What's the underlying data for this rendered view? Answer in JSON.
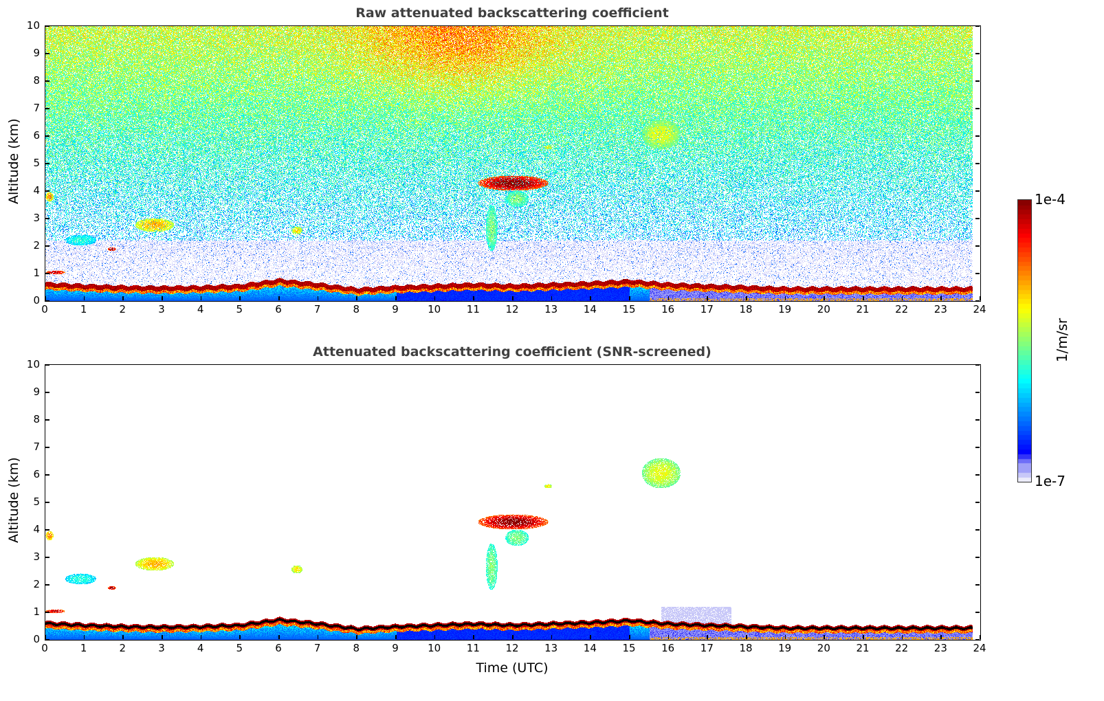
{
  "chart_data": [
    {
      "type": "heatmap",
      "title": "Raw attenuated backscattering coefficient",
      "xlabel": "",
      "ylabel": "Altitude (km)",
      "xlim": [
        0,
        24
      ],
      "ylim": [
        0,
        10
      ],
      "xticks": [
        0,
        1,
        2,
        3,
        4,
        5,
        6,
        7,
        8,
        9,
        10,
        11,
        12,
        13,
        14,
        15,
        16,
        17,
        18,
        19,
        20,
        21,
        22,
        23,
        24
      ],
      "yticks": [
        0,
        1,
        2,
        3,
        4,
        5,
        6,
        7,
        8,
        9,
        10
      ],
      "screened": false
    },
    {
      "type": "heatmap",
      "title": "Attenuated backscattering coefficient (SNR-screened)",
      "xlabel": "Time (UTC)",
      "ylabel": "Altitude (km)",
      "xlim": [
        0,
        24
      ],
      "ylim": [
        0,
        10
      ],
      "xticks": [
        0,
        1,
        2,
        3,
        4,
        5,
        6,
        7,
        8,
        9,
        10,
        11,
        12,
        13,
        14,
        15,
        16,
        17,
        18,
        19,
        20,
        21,
        22,
        23,
        24
      ],
      "yticks": [
        0,
        1,
        2,
        3,
        4,
        5,
        6,
        7,
        8,
        9,
        10
      ],
      "screened": true
    }
  ],
  "data_end_hour": 23.8,
  "boundary_layer_top_km": [
    0.62,
    0.55,
    0.5,
    0.48,
    0.5,
    0.55,
    0.75,
    0.6,
    0.42,
    0.5,
    0.55,
    0.6,
    0.55,
    0.6,
    0.65,
    0.72,
    0.6,
    0.55,
    0.5,
    0.45,
    0.45,
    0.45,
    0.45,
    0.45,
    0.45
  ],
  "cloud_features": [
    {
      "t": [
        11.1,
        12.9
      ],
      "z": [
        4.0,
        4.55
      ],
      "level": 0.95
    },
    {
      "t": [
        11.3,
        11.6
      ],
      "z": [
        1.8,
        3.5
      ],
      "level": 0.45
    },
    {
      "t": [
        11.8,
        12.4
      ],
      "z": [
        3.4,
        4.0
      ],
      "level": 0.45
    },
    {
      "t": [
        0.0,
        0.2
      ],
      "z": [
        3.6,
        3.95
      ],
      "level": 0.7
    },
    {
      "t": [
        0.5,
        1.3
      ],
      "z": [
        2.0,
        2.4
      ],
      "level": 0.35
    },
    {
      "t": [
        1.6,
        1.8
      ],
      "z": [
        1.8,
        1.95
      ],
      "level": 0.95
    },
    {
      "t": [
        2.3,
        3.3
      ],
      "z": [
        2.5,
        3.0
      ],
      "level": 0.65
    },
    {
      "t": [
        0.0,
        0.5
      ],
      "z": [
        0.95,
        1.1
      ],
      "level": 0.9
    },
    {
      "t": [
        15.3,
        16.3
      ],
      "z": [
        5.5,
        6.6
      ],
      "level": 0.55
    },
    {
      "t": [
        12.8,
        13.0
      ],
      "z": [
        5.5,
        5.65
      ],
      "level": 0.6
    },
    {
      "t": [
        6.3,
        6.6
      ],
      "z": [
        2.4,
        2.7
      ],
      "level": 0.6
    }
  ],
  "colorbar": {
    "label": "1/m/sr",
    "max_label": "1e-4",
    "min_label": "1e-7",
    "min": 1e-07,
    "max": 0.0001,
    "scale": "log"
  }
}
